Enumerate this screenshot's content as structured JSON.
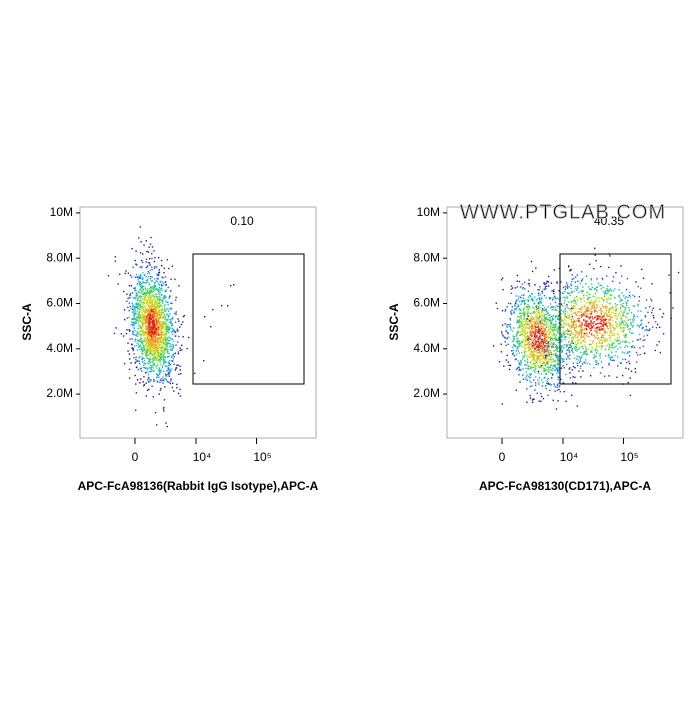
{
  "chart_data": [
    {
      "type": "scatter",
      "xlabel": "APC-FcA98136(Rabbit IgG Isotype),APC-A",
      "ylabel": "SSC-A",
      "annotation": "0.10",
      "xscale": "asinh",
      "xlim": [
        -7900,
        952000
      ],
      "xticks": [
        0,
        {
          "value": 10000,
          "label": "10⁴"
        },
        {
          "value": 100000,
          "label": "10⁵"
        }
      ],
      "ylim": [
        60000,
        10260000
      ],
      "yticks": [
        {
          "value": 2000000,
          "label": "2.0M"
        },
        {
          "value": 4000000,
          "label": "4.0M"
        },
        {
          "value": 6000000,
          "label": "6.0M"
        },
        {
          "value": 8000000,
          "label": "8.0M"
        },
        {
          "value": 10000000,
          "label": "10M"
        }
      ]
    },
    {
      "type": "scatter",
      "xlabel": "APC-FcA98130(CD171),APC-A",
      "ylabel": "SSC-A",
      "annotation": "40.35",
      "xscale": "asinh",
      "xlim": [
        -7900,
        952000
      ],
      "xticks": [
        0,
        {
          "value": 10000,
          "label": "10⁴"
        },
        {
          "value": 100000,
          "label": "10⁵"
        }
      ],
      "ylim": [
        60000,
        10260000
      ],
      "yticks": [
        {
          "value": 2000000,
          "label": "2.0M"
        },
        {
          "value": 4000000,
          "label": "4.0M"
        },
        {
          "value": 6000000,
          "label": "6.0M"
        },
        {
          "value": 8000000,
          "label": "8.0M"
        },
        {
          "value": 10000000,
          "label": "10M"
        }
      ]
    }
  ],
  "watermark": "WWW.PTGLAB.COM"
}
